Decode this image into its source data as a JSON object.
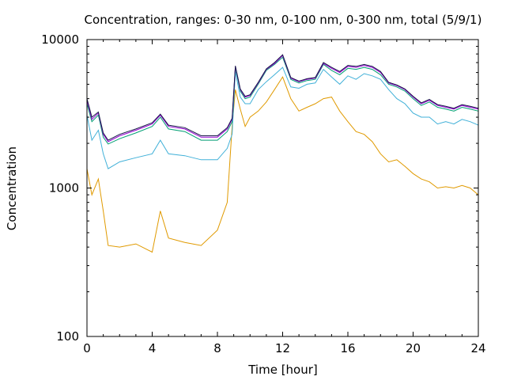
{
  "chart_data": {
    "type": "line",
    "title": "Concentration, ranges: 0-30 nm, 0-100 nm, 0-300 nm, total (5/9/1)",
    "xlabel": "Time [hour]",
    "ylabel": "Concentration",
    "xlim": [
      0,
      24
    ],
    "ylim": [
      100,
      10000
    ],
    "yscale": "log",
    "grid": false,
    "legend": "none",
    "x_ticks": [
      "0",
      "4",
      "8",
      "12",
      "16",
      "20",
      "24"
    ],
    "y_ticks": [
      "100",
      "1000",
      "10000"
    ],
    "x_tick_values": [
      0,
      4,
      8,
      12,
      16,
      20,
      24
    ],
    "y_tick_values": [
      100,
      1000,
      10000
    ],
    "x": [
      0,
      0.3,
      0.7,
      1.0,
      1.3,
      2.0,
      3.0,
      4.0,
      4.5,
      5.0,
      6.0,
      7.0,
      8.0,
      8.6,
      8.9,
      9.1,
      9.4,
      9.7,
      10.0,
      10.5,
      11.0,
      11.5,
      12.0,
      12.5,
      13.0,
      13.5,
      14.0,
      14.5,
      15.0,
      15.5,
      16.0,
      16.5,
      17.0,
      17.5,
      18.0,
      18.5,
      19.0,
      19.5,
      20.0,
      20.5,
      21.0,
      21.5,
      22.0,
      22.5,
      23.0,
      23.5,
      24.0
    ],
    "series": [
      {
        "color": "#e09a00",
        "values": [
          1350,
          900,
          1150,
          700,
          410,
          400,
          420,
          370,
          700,
          460,
          430,
          410,
          520,
          800,
          2600,
          4600,
          3400,
          2600,
          3000,
          3300,
          3800,
          4600,
          5600,
          4000,
          3300,
          3500,
          3700,
          4000,
          4100,
          3300,
          2800,
          2400,
          2300,
          2050,
          1700,
          1500,
          1550,
          1400,
          1250,
          1150,
          1100,
          1000,
          1020,
          1000,
          1040,
          1000,
          900
        ]
      },
      {
        "color": "#40b0d8",
        "values": [
          3100,
          2100,
          2450,
          1700,
          1350,
          1500,
          1600,
          1700,
          2100,
          1700,
          1650,
          1550,
          1550,
          1850,
          2300,
          6100,
          4100,
          3700,
          3700,
          4600,
          5200,
          5800,
          6500,
          4800,
          4700,
          5000,
          5100,
          6300,
          5600,
          5000,
          5700,
          5400,
          5900,
          5700,
          5400,
          4600,
          4000,
          3700,
          3200,
          3000,
          3000,
          2700,
          2800,
          2700,
          2900,
          2800,
          2650
        ]
      },
      {
        "color": "#009e73",
        "values": [
          3700,
          2800,
          3100,
          2200,
          1980,
          2150,
          2350,
          2600,
          3000,
          2500,
          2400,
          2100,
          2100,
          2400,
          2800,
          6500,
          4500,
          4000,
          4100,
          5000,
          6200,
          6800,
          7600,
          5400,
          5100,
          5300,
          5400,
          6800,
          6200,
          5800,
          6400,
          6300,
          6500,
          6300,
          5800,
          5000,
          4800,
          4500,
          4000,
          3600,
          3800,
          3500,
          3400,
          3300,
          3500,
          3400,
          3300
        ]
      },
      {
        "color": "#9400d3",
        "values": [
          3900,
          2900,
          3200,
          2300,
          2050,
          2250,
          2450,
          2700,
          3100,
          2600,
          2500,
          2200,
          2200,
          2500,
          2900,
          6600,
          4600,
          4100,
          4200,
          5100,
          6300,
          6900,
          7800,
          5500,
          5200,
          5400,
          5500,
          6900,
          6400,
          6000,
          6600,
          6500,
          6700,
          6500,
          6000,
          5100,
          4900,
          4600,
          4100,
          3700,
          3900,
          3600,
          3500,
          3400,
          3600,
          3500,
          3400
        ]
      },
      {
        "color": "#1a1a4a",
        "values": [
          4000,
          3000,
          3250,
          2350,
          2100,
          2300,
          2500,
          2750,
          3150,
          2650,
          2550,
          2250,
          2250,
          2550,
          2950,
          6650,
          4650,
          4150,
          4250,
          5150,
          6350,
          7000,
          7900,
          5550,
          5250,
          5450,
          5550,
          7000,
          6500,
          6100,
          6700,
          6600,
          6800,
          6600,
          6100,
          5150,
          4950,
          4650,
          4150,
          3750,
          3950,
          3650,
          3550,
          3450,
          3650,
          3550,
          3450
        ]
      }
    ]
  }
}
